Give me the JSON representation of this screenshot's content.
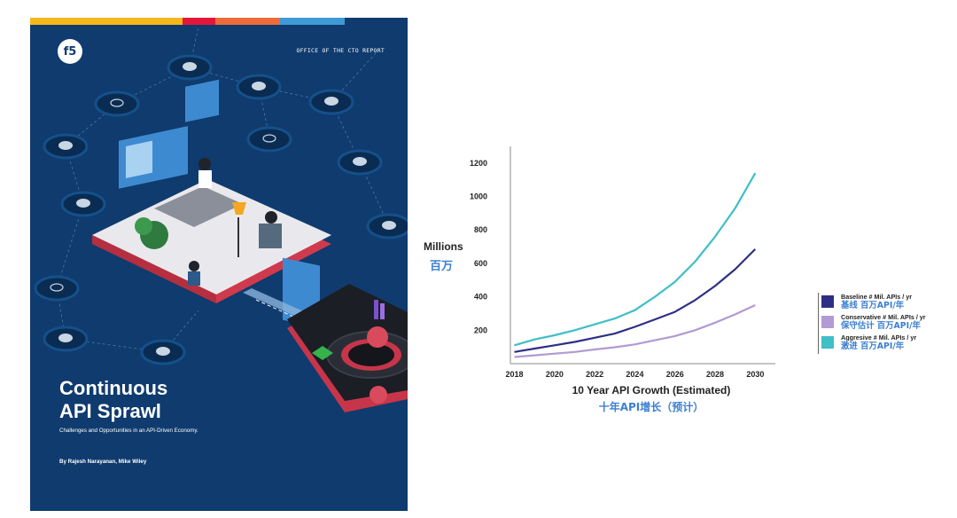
{
  "cover": {
    "kicker": "OFFICE OF THE CTO REPORT",
    "title_line1": "Continuous",
    "title_line2": "API Sprawl",
    "subtitle": "Challenges and Opportunities in an API-Driven Economy.",
    "authors": "By Rajesh Narayanan, Mike Wiley",
    "logo": "f5",
    "background_color": "#0f3b6e",
    "stripe_colors": [
      "#f5b81a",
      "#e4163a",
      "#ee6b3b",
      "#3e9ad6",
      "#0f3b6e"
    ]
  },
  "chart_data": {
    "type": "line",
    "x": [
      2018,
      2019,
      2020,
      2021,
      2022,
      2023,
      2024,
      2025,
      2026,
      2027,
      2028,
      2029,
      2030
    ],
    "x_ticks": [
      2018,
      2020,
      2022,
      2024,
      2026,
      2028,
      2030
    ],
    "y_ticks": [
      200,
      400,
      600,
      800,
      1000,
      1200
    ],
    "ylim": [
      0,
      1300
    ],
    "xlim": [
      2017.8,
      2031
    ],
    "ylabel": "Millions",
    "ylabel_zh": "百万",
    "xlabel": "10 Year API Growth (Estimated)",
    "xlabel_zh": "十年API增长（预计）",
    "series": [
      {
        "name": "Baseline # Mil. APIs / yr",
        "name_zh": "基线 百万API/年",
        "color": "#2e2f84",
        "values": [
          70,
          90,
          110,
          130,
          155,
          180,
          220,
          265,
          310,
          380,
          465,
          565,
          685
        ]
      },
      {
        "name": "Conservative # Mil. APIs / yr",
        "name_zh": "保守估计 百万API/年",
        "color": "#b29ad3",
        "values": [
          40,
          50,
          60,
          70,
          85,
          98,
          115,
          140,
          165,
          200,
          245,
          295,
          350
        ]
      },
      {
        "name": "Aggresive # Mil. APIs / yr",
        "name_zh": "激进 百万API/年",
        "color": "#3fbfc6",
        "values": [
          110,
          145,
          170,
          200,
          235,
          270,
          320,
          400,
          490,
          610,
          760,
          930,
          1140
        ]
      }
    ]
  }
}
